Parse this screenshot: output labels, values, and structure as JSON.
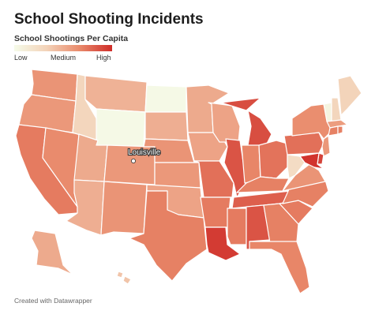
{
  "title": "School Shooting Incidents",
  "subtitle": "School Shootings Per Capita",
  "legend": {
    "low": "Low",
    "medium": "Medium",
    "high": "High",
    "colors": [
      "#f5fbe9",
      "#f3d2b8",
      "#e98a6b",
      "#cf2d29"
    ]
  },
  "city_marker": {
    "label": "Louisville"
  },
  "credit": "Created with Datawrapper",
  "states": [
    {
      "code": "WA",
      "level": 0.62
    },
    {
      "code": "OR",
      "level": 0.6
    },
    {
      "code": "CA",
      "level": 0.72
    },
    {
      "code": "NV",
      "level": 0.66
    },
    {
      "code": "ID",
      "level": 0.3
    },
    {
      "code": "MT",
      "level": 0.48
    },
    {
      "code": "WY",
      "level": 0.02
    },
    {
      "code": "UT",
      "level": 0.52
    },
    {
      "code": "AZ",
      "level": 0.5
    },
    {
      "code": "CO",
      "level": 0.6
    },
    {
      "code": "NM",
      "level": 0.62
    },
    {
      "code": "ND",
      "level": 0.02
    },
    {
      "code": "SD",
      "level": 0.5
    },
    {
      "code": "NE",
      "level": 0.62
    },
    {
      "code": "KS",
      "level": 0.6
    },
    {
      "code": "OK",
      "level": 0.55
    },
    {
      "code": "TX",
      "level": 0.7
    },
    {
      "code": "MN",
      "level": 0.52
    },
    {
      "code": "IA",
      "level": 0.55
    },
    {
      "code": "MO",
      "level": 0.76
    },
    {
      "code": "AR",
      "level": 0.72
    },
    {
      "code": "LA",
      "level": 0.95
    },
    {
      "code": "WI",
      "level": 0.55
    },
    {
      "code": "IL",
      "level": 0.86
    },
    {
      "code": "MI",
      "level": 0.88
    },
    {
      "code": "IN",
      "level": 0.68
    },
    {
      "code": "OH",
      "level": 0.75
    },
    {
      "code": "KY",
      "level": 0.7
    },
    {
      "code": "TN",
      "level": 0.82
    },
    {
      "code": "MS",
      "level": 0.72
    },
    {
      "code": "AL",
      "level": 0.86
    },
    {
      "code": "GA",
      "level": 0.7
    },
    {
      "code": "FL",
      "level": 0.68
    },
    {
      "code": "SC",
      "level": 0.72
    },
    {
      "code": "NC",
      "level": 0.7
    },
    {
      "code": "VA",
      "level": 0.62
    },
    {
      "code": "WV",
      "level": 0.25
    },
    {
      "code": "PA",
      "level": 0.76
    },
    {
      "code": "NY",
      "level": 0.65
    },
    {
      "code": "VT",
      "level": 0.06
    },
    {
      "code": "NH",
      "level": 0.3
    },
    {
      "code": "ME",
      "level": 0.32
    },
    {
      "code": "MA",
      "level": 0.58
    },
    {
      "code": "CT",
      "level": 0.7
    },
    {
      "code": "RI",
      "level": 0.7
    },
    {
      "code": "NJ",
      "level": 0.6
    },
    {
      "code": "DE",
      "level": 0.92
    },
    {
      "code": "MD",
      "level": 0.98
    },
    {
      "code": "AK",
      "level": 0.52
    },
    {
      "code": "HI",
      "level": 0.4
    }
  ]
}
